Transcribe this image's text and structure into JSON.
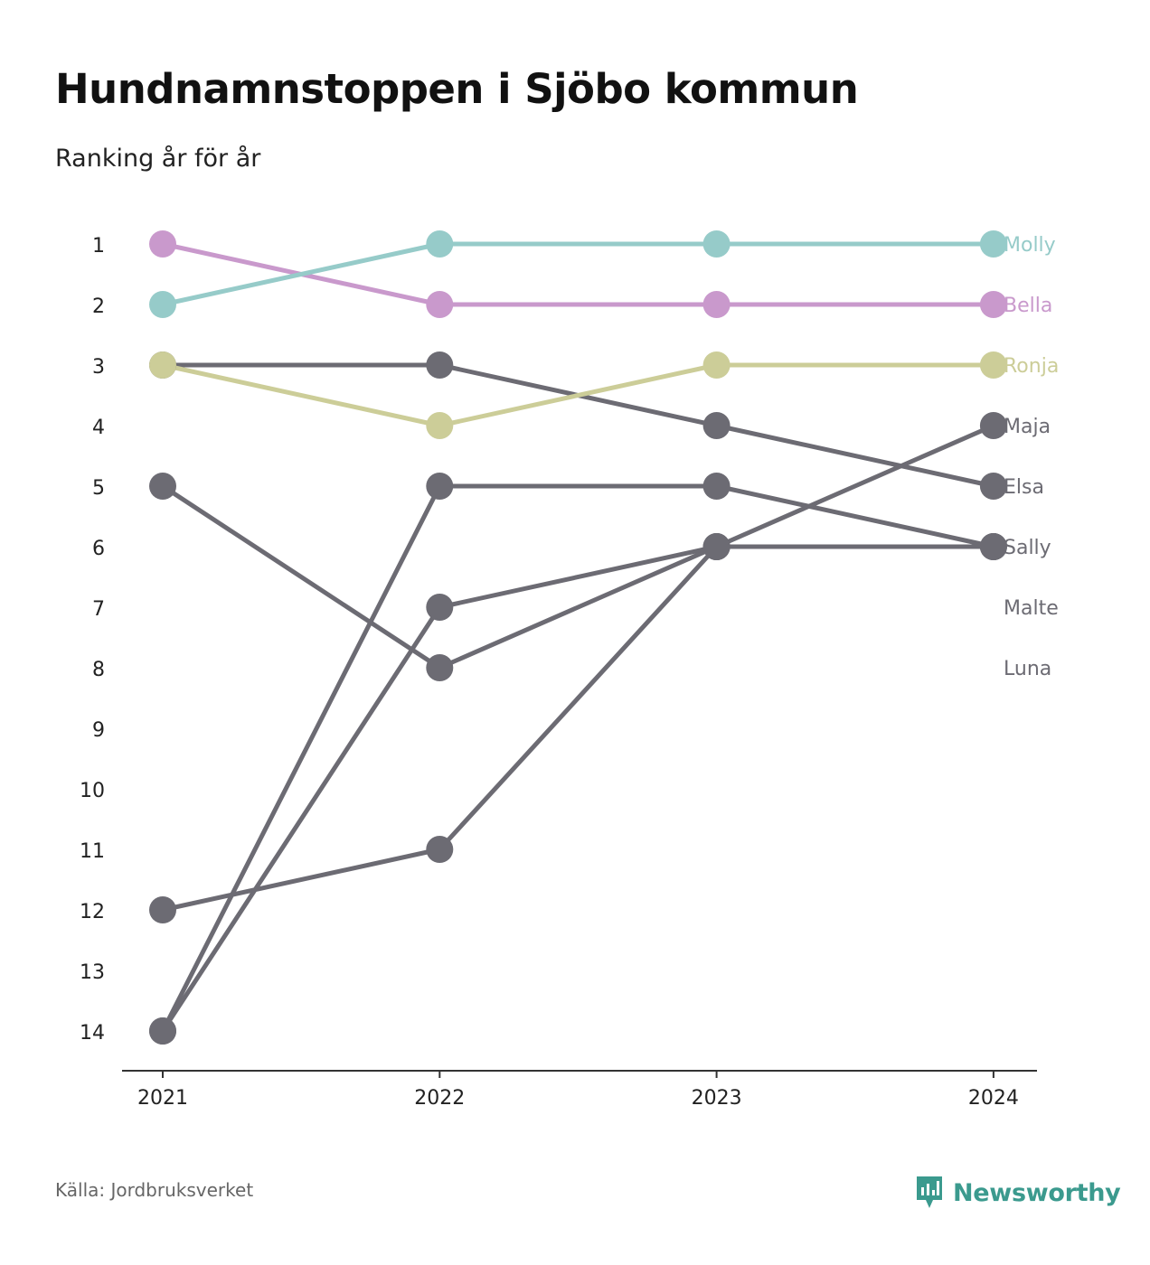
{
  "title": "Hundnamnstoppen i Sjöbo kommun",
  "subtitle": "Ranking år för år",
  "source": "Källa: Jordbruksverket",
  "brand": {
    "name": "Newsworthy",
    "icon": "newsworthy-logo-icon",
    "color": "#3b9a8e"
  },
  "chart_data": {
    "type": "line",
    "subtype": "bump",
    "title": "Hundnamnstoppen i Sjöbo kommun",
    "subtitle": "Ranking år för år",
    "x": [
      "2021",
      "2022",
      "2023",
      "2024"
    ],
    "y_ticks": [
      1,
      2,
      3,
      4,
      5,
      6,
      7,
      8,
      9,
      10,
      11,
      12,
      13,
      14
    ],
    "ylim": [
      1,
      14
    ],
    "y_reversed": true,
    "grid": false,
    "legend": "direct labels right",
    "series": [
      {
        "name": "Maja",
        "values": [
          12,
          11,
          6,
          4
        ],
        "color": "#6c6b73"
      },
      {
        "name": "Elsa",
        "values": [
          3,
          3,
          4,
          5
        ],
        "color": "#6c6b73"
      },
      {
        "name": "Sally",
        "values": [
          5,
          8,
          6,
          6
        ],
        "color": "#6c6b73"
      },
      {
        "name": "Malte",
        "values": [
          14,
          5,
          5,
          6
        ],
        "color": "#6c6b73"
      },
      {
        "name": "Luna",
        "values": [
          14,
          7,
          6,
          6
        ],
        "color": "#6c6b73"
      },
      {
        "name": "Ronja",
        "values": [
          3,
          4,
          3,
          3
        ],
        "color": "#cccd98"
      },
      {
        "name": "Bella",
        "values": [
          1,
          2,
          2,
          2
        ],
        "color": "#c999cc"
      },
      {
        "name": "Molly",
        "values": [
          2,
          1,
          1,
          1
        ],
        "color": "#96cbc9"
      }
    ],
    "labels": [
      {
        "name": "Molly",
        "rank": 1,
        "color": "#96cbc9"
      },
      {
        "name": "Bella",
        "rank": 2,
        "color": "#c999cc"
      },
      {
        "name": "Ronja",
        "rank": 3,
        "color": "#cccd98"
      },
      {
        "name": "Maja",
        "rank": 4,
        "color": "#6c6b73"
      },
      {
        "name": "Elsa",
        "rank": 5,
        "color": "#6c6b73"
      },
      {
        "name": "Sally",
        "rank": 6,
        "color": "#6c6b73"
      },
      {
        "name": "Malte",
        "rank": 7,
        "color": "#6c6b73"
      },
      {
        "name": "Luna",
        "rank": 8,
        "color": "#6c6b73"
      }
    ]
  }
}
